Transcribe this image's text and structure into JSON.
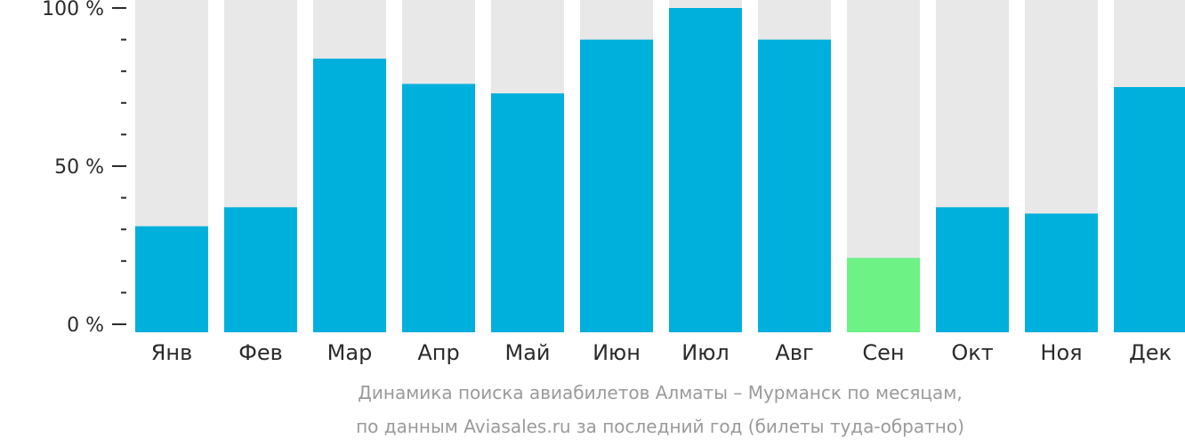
{
  "chart_data": {
    "type": "bar",
    "categories": [
      "Янв",
      "Фев",
      "Мар",
      "Апр",
      "Май",
      "Июн",
      "Июл",
      "Авг",
      "Сен",
      "Окт",
      "Ноя",
      "Дек"
    ],
    "values": [
      31,
      37,
      84,
      76,
      73,
      90,
      100,
      90,
      21,
      37,
      35,
      75
    ],
    "ylim": [
      0,
      100
    ],
    "yticks": [
      {
        "value": 0,
        "label": "0 %"
      },
      {
        "value": 50,
        "label": "50 %"
      },
      {
        "value": 100,
        "label": "100 %"
      }
    ],
    "minor_tick_step": 10,
    "highlight_index": 8,
    "colors": {
      "bar": "#00b0dc",
      "highlight": "#6cf285",
      "background_bar": "#e8e8e8",
      "axis": "#2b2b2b"
    }
  },
  "caption": {
    "line1": "Динамика поиска авиабилетов Алматы – Мурманск по месяцам,",
    "line2": "по данным Aviasales.ru за последний год (билеты туда-обратно)"
  }
}
